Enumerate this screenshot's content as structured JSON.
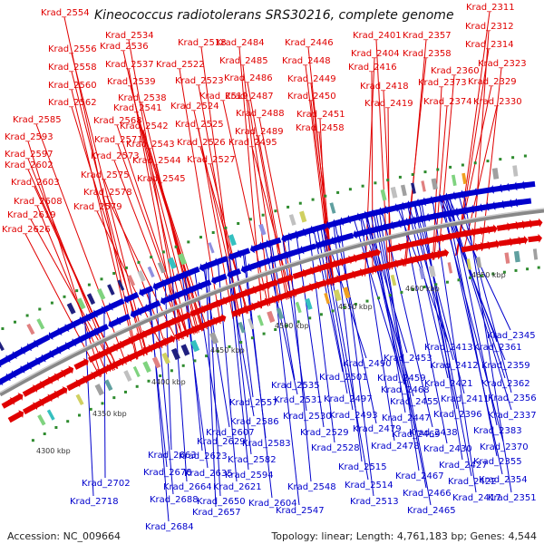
{
  "title": "Kineococcus radiotolerans SRS30216, complete genome",
  "accession": "Accession: NC_009664",
  "topology": "Topology: linear; Length: 4,761,183 bp; Genes: 4,544",
  "colors": {
    "forward": "#e00000",
    "reverse": "#0000cc",
    "backbone": "#888888",
    "dot": "#2e8b2e"
  },
  "kbp_ticks": [
    {
      "label": "4300 kbp",
      "pos": 4300
    },
    {
      "label": "4350 kbp",
      "pos": 4350
    },
    {
      "label": "4400 kbp",
      "pos": 4400
    },
    {
      "label": "4450 kbp",
      "pos": 4450
    },
    {
      "label": "4500 kbp",
      "pos": 4500
    },
    {
      "label": "4550 kbp",
      "pos": 4550
    },
    {
      "label": "4600 kbp",
      "pos": 4600
    },
    {
      "label": "4650 kbp",
      "pos": 4650
    }
  ],
  "top_genes": [
    "Krad_2554",
    "Krad_2556",
    "Krad_2558",
    "Krad_2560",
    "Krad_2562",
    "Krad_2585",
    "Krad_2593",
    "Krad_2597",
    "Krad_2602",
    "Krad_2603",
    "Krad_2608",
    "Krad_2619",
    "Krad_2626",
    "Krad_2534",
    "Krad_2536",
    "Krad_2537",
    "Krad_2539",
    "Krad_2538",
    "Krad_2541",
    "Krad_2542",
    "Krad_2543",
    "Krad_2544",
    "Krad_2545",
    "Krad_2568",
    "Krad_2571",
    "Krad_2573",
    "Krad_2575",
    "Krad_2578",
    "Krad_2579",
    "Krad_2518",
    "Krad_2522",
    "Krad_2523",
    "Krad_2519",
    "Krad_2524",
    "Krad_2525",
    "Krad_2526",
    "Krad_2527",
    "Krad_2484",
    "Krad_2485",
    "Krad_2486",
    "Krad_2487",
    "Krad_2488",
    "Krad_2489",
    "Krad_2495",
    "Krad_2446",
    "Krad_2448",
    "Krad_2449",
    "Krad_2450",
    "Krad_2451",
    "Krad_2458",
    "Krad_2401",
    "Krad_2404",
    "Krad_2416",
    "Krad_2418",
    "Krad_2419",
    "Krad_2357",
    "Krad_2358",
    "Krad_2360",
    "Krad_2373",
    "Krad_2374",
    "Krad_2311",
    "Krad_2312",
    "Krad_2314",
    "Krad_2323",
    "Krad_2329",
    "Krad_2330"
  ],
  "bottom_genes": [
    "Krad_2345",
    "Krad_2361",
    "Krad_2359",
    "Krad_2362",
    "Krad_2356",
    "Krad_2337",
    "Krad_2383",
    "Krad_2370",
    "Krad_2355",
    "Krad_2354",
    "Krad_2351",
    "Krad_2413",
    "Krad_2412",
    "Krad_2421",
    "Krad_2411",
    "Krad_2396",
    "Krad_2438",
    "Krad_2430",
    "Krad_2427",
    "Krad_2422",
    "Krad_2417",
    "Krad_2453",
    "Krad_2459",
    "Krad_2468",
    "Krad_2455",
    "Krad_2447",
    "Krad_2469",
    "Krad_2467",
    "Krad_2466",
    "Krad_2465",
    "Krad_2490",
    "Krad_2501",
    "Krad_2497",
    "Krad_2493",
    "Krad_2479",
    "Krad_2478",
    "Krad_2535",
    "Krad_2531",
    "Krad_2530",
    "Krad_2529",
    "Krad_2528",
    "Krad_2515",
    "Krad_2514",
    "Krad_2513",
    "Krad_2557",
    "Krad_2586",
    "Krad_2607",
    "Krad_2583",
    "Krad_2582",
    "Krad_2594",
    "Krad_2548",
    "Krad_2547",
    "Krad_2604",
    "Krad_2629",
    "Krad_2623",
    "Krad_2635",
    "Krad_2621",
    "Krad_2650",
    "Krad_2657",
    "Krad_2663",
    "Krad_2678",
    "Krad_2664",
    "Krad_2688",
    "Krad_2702",
    "Krad_2718",
    "Krad_2684"
  ]
}
